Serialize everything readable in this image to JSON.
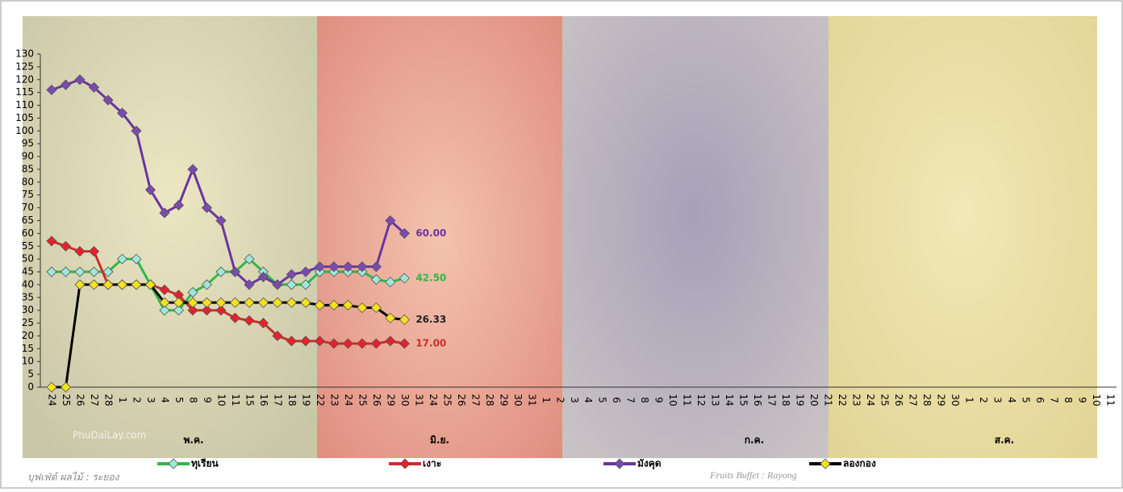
{
  "chart_data": {
    "type": "line",
    "categories": [
      "24",
      "25",
      "26",
      "27",
      "28",
      "1",
      "2",
      "3",
      "4",
      "5",
      "8",
      "9",
      "10",
      "11",
      "15",
      "16",
      "17",
      "18",
      "19",
      "22",
      "23",
      "24",
      "25",
      "26",
      "29",
      "30",
      "31",
      "24",
      "25",
      "26",
      "27",
      "28",
      "29",
      "30",
      "31",
      "1",
      "2",
      "3",
      "4",
      "5",
      "6",
      "7",
      "8",
      "9",
      "10",
      "11",
      "12",
      "13",
      "14",
      "15",
      "16",
      "17",
      "18",
      "19",
      "20",
      "21",
      "22",
      "23",
      "24",
      "25",
      "26",
      "27",
      "28",
      "29",
      "30",
      "1",
      "2",
      "3",
      "4",
      "5",
      "6",
      "7",
      "8",
      "9",
      "10",
      "11"
    ],
    "months": [
      "พ.ค.",
      "มิ.ย.",
      "ก.ค.",
      "ส.ค."
    ],
    "series": [
      {
        "name": "ทุเรียน",
        "color": "#2fb84a",
        "marker_color": "#9fe6d8",
        "end_label": "42.50",
        "values": [
          45,
          45,
          45,
          45,
          45,
          50,
          50,
          40,
          30,
          30,
          37,
          40,
          45,
          45,
          50,
          45,
          40,
          40,
          40,
          45,
          45,
          45,
          45,
          42,
          41,
          42.5,
          null,
          null,
          null,
          null,
          null,
          null,
          null,
          null,
          null,
          null,
          null,
          null,
          null,
          null,
          null,
          null,
          null,
          null,
          null,
          null,
          null,
          null,
          null,
          null,
          null,
          null,
          null,
          null,
          null,
          null,
          null,
          null,
          null,
          null,
          null,
          null,
          null,
          null,
          null,
          null,
          null,
          null,
          null,
          null,
          null,
          null,
          null,
          null,
          null,
          null
        ]
      },
      {
        "name": "เงาะ",
        "color": "#c8302c",
        "marker_color": "#e8202a",
        "end_label": "17.00",
        "values": [
          57,
          55,
          53,
          53,
          40,
          40,
          40,
          40,
          38,
          36,
          30,
          30,
          30,
          27,
          26,
          25,
          20,
          18,
          18,
          18,
          17,
          17,
          17,
          17,
          18,
          17,
          null,
          null,
          null,
          null,
          null,
          null,
          null,
          null,
          null,
          null,
          null,
          null,
          null,
          null,
          null,
          null,
          null,
          null,
          null,
          null,
          null,
          null,
          null,
          null,
          null,
          null,
          null,
          null,
          null,
          null,
          null,
          null,
          null,
          null,
          null,
          null,
          null,
          null,
          null,
          null,
          null,
          null,
          null,
          null,
          null,
          null,
          null,
          null,
          null,
          null
        ]
      },
      {
        "name": "มังคุด",
        "color": "#6a35a0",
        "marker_color": "#7a4ab0",
        "end_label": "60.00",
        "values": [
          116,
          118,
          120,
          117,
          112,
          107,
          100,
          77,
          68,
          71,
          85,
          70,
          65,
          45,
          40,
          43,
          40,
          44,
          45,
          47,
          47,
          47,
          47,
          47,
          65,
          60,
          null,
          null,
          null,
          null,
          null,
          null,
          null,
          null,
          null,
          null,
          null,
          null,
          null,
          null,
          null,
          null,
          null,
          null,
          null,
          null,
          null,
          null,
          null,
          null,
          null,
          null,
          null,
          null,
          null,
          null,
          null,
          null,
          null,
          null,
          null,
          null,
          null,
          null,
          null,
          null,
          null,
          null,
          null,
          null,
          null,
          null,
          null,
          null,
          null,
          null
        ]
      },
      {
        "name": "ลองกอง",
        "color": "#000000",
        "marker_color": "#f5e21a",
        "end_label": "26.33",
        "values": [
          0,
          0,
          40,
          40,
          40,
          40,
          40,
          40,
          33,
          33,
          33,
          33,
          33,
          33,
          33,
          33,
          33,
          33,
          33,
          32,
          32,
          32,
          31,
          31,
          27,
          26.33,
          null,
          null,
          null,
          null,
          null,
          null,
          null,
          null,
          null,
          null,
          null,
          null,
          null,
          null,
          null,
          null,
          null,
          null,
          null,
          null,
          null,
          null,
          null,
          null,
          null,
          null,
          null,
          null,
          null,
          null,
          null,
          null,
          null,
          null,
          null,
          null,
          null,
          null,
          null,
          null,
          null,
          null,
          null,
          null,
          null,
          null,
          null,
          null,
          null,
          null
        ]
      }
    ],
    "ylim": [
      0,
      130
    ],
    "yticks": [
      0,
      5,
      10,
      15,
      20,
      25,
      30,
      35,
      40,
      45,
      50,
      55,
      60,
      65,
      70,
      75,
      80,
      85,
      90,
      95,
      100,
      105,
      110,
      115,
      120,
      125,
      130
    ],
    "watermarks": [
      "PhuDaiLay.com",
      "บุฟเฟ่ต์ ผลไม้ : ระยอง",
      "Fruits Buffet : Rayong"
    ]
  }
}
